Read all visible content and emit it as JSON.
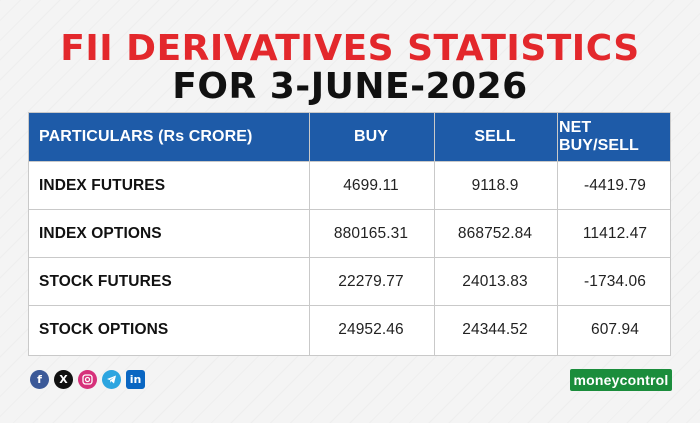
{
  "title_line1": "FII DERIVATIVES STATISTICS",
  "title_line2": "FOR 3-JUNE-2026",
  "table": {
    "headers": [
      "PARTICULARS (Rs CRORE)",
      "BUY",
      "SELL",
      "NET BUY/SELL"
    ],
    "rows": [
      [
        "INDEX FUTURES",
        "4699.11",
        "9118.9",
        "-4419.79"
      ],
      [
        "INDEX OPTIONS",
        "880165.31",
        "868752.84",
        "11412.47"
      ],
      [
        "STOCK FUTURES",
        "22279.77",
        "24013.83",
        "-1734.06"
      ],
      [
        "STOCK OPTIONS",
        "24952.46",
        "24344.52",
        "607.94"
      ]
    ]
  },
  "social_icons": [
    "facebook-icon",
    "x-icon",
    "instagram-icon",
    "telegram-icon",
    "linkedin-icon"
  ],
  "brand": {
    "part1": "money",
    "part2": "control"
  },
  "colors": {
    "title_red": "#e3282c",
    "header_blue": "#1e5ba8",
    "brand_green": "#1b8d3c"
  }
}
